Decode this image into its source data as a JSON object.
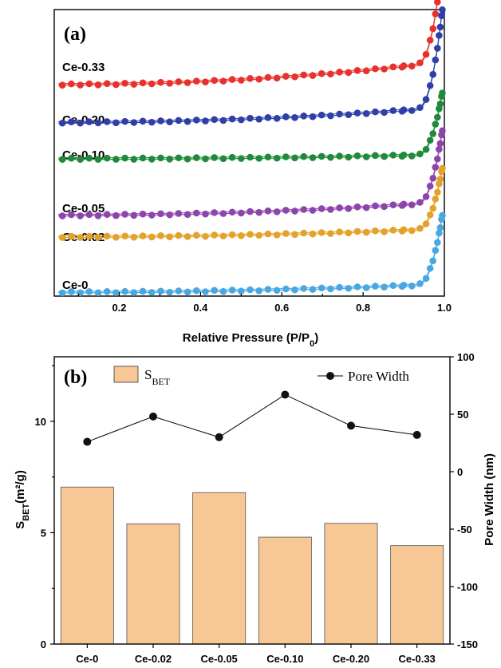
{
  "chart_data": [
    {
      "type": "scatter",
      "panel_label": "(a)",
      "xlabel": "Relative Pressure (P/P",
      "xlabel_sub": "0",
      "xlabel_end": ")",
      "xlim": [
        0.04,
        1.0
      ],
      "x_ticks": [
        "0.2",
        "0.4",
        "0.6",
        "0.8",
        "1.0"
      ],
      "x_tick_values": [
        0.2,
        0.4,
        0.6,
        0.8,
        1.0
      ],
      "series": [
        {
          "name": "Ce-0.33",
          "color": "#e8302c",
          "base": 0.75,
          "rise": 0.083,
          "final_rise": 0.36
        },
        {
          "name": "Ce-0.20",
          "color": "#2f3fa8",
          "base": 0.613,
          "rise": 0.055,
          "final_rise": 0.355
        },
        {
          "name": "Ce-0.10",
          "color": "#1f8a3a",
          "base": 0.482,
          "rise": 0.015,
          "final_rise": 0.225
        },
        {
          "name": "Ce-0.05",
          "color": "#8e44ad",
          "base": 0.278,
          "rise": 0.048,
          "final_rise": 0.26
        },
        {
          "name": "Ce-0.02",
          "color": "#e3a22a",
          "base": 0.2,
          "rise": 0.03,
          "final_rise": 0.22
        },
        {
          "name": "Ce-0",
          "color": "#4aa8e0",
          "base": 0.0,
          "rise": 0.03,
          "final_rise": 0.25
        }
      ]
    },
    {
      "type": "bar",
      "panel_label": "(b)",
      "categories": [
        "Ce-0",
        "Ce-0.02",
        "Ce-0.05",
        "Ce-0.10",
        "Ce-0.20",
        "Ce-0.33"
      ],
      "ylabel_left": "S",
      "ylabel_left_sub": "BET",
      "ylabel_left_unit": "(m²/g)",
      "ylim_left": [
        0,
        12.9
      ],
      "y_ticks_left": [
        "0",
        "5",
        "10"
      ],
      "y_tick_values_left": [
        0,
        5,
        10
      ],
      "ylabel_right": "Pore Width (nm)",
      "ylim_right": [
        -150,
        100
      ],
      "y_ticks_right": [
        "-150",
        "-100",
        "-50",
        "0",
        "50",
        "100"
      ],
      "y_tick_values_right": [
        -150,
        -100,
        -50,
        0,
        50,
        100
      ],
      "series": [
        {
          "name": "S",
          "name_sub": "BET",
          "axis": "left",
          "kind": "bar",
          "color": "#f7c795",
          "values": [
            7.05,
            5.4,
            6.8,
            4.8,
            5.42,
            4.42
          ]
        },
        {
          "name": "Pore Width",
          "axis": "right",
          "kind": "line",
          "color": "#000000",
          "values": [
            26,
            48,
            30,
            67,
            40,
            32
          ]
        }
      ]
    }
  ]
}
